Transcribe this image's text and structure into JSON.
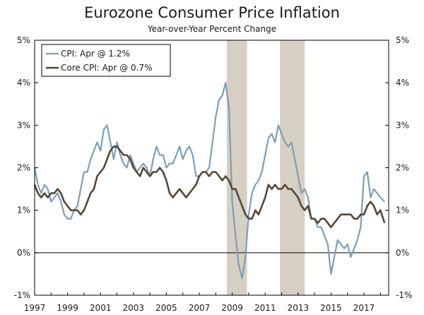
{
  "chart_data": {
    "type": "line",
    "title": "Eurozone Consumer Price Inflation",
    "subtitle": "Year-over-Year Percent Change",
    "xlabel": "",
    "ylabel": "",
    "xlim": [
      1997.0,
      2018.5
    ],
    "ylim": [
      -1,
      5
    ],
    "y_ticks": [
      -1,
      0,
      1,
      2,
      3,
      4,
      5
    ],
    "y_tick_labels": [
      "-1%",
      "0%",
      "1%",
      "2%",
      "3%",
      "4%",
      "5%"
    ],
    "x_ticks": [
      1997,
      1999,
      2001,
      2003,
      2005,
      2007,
      2009,
      2011,
      2013,
      2015,
      2017
    ],
    "x_tick_labels": [
      "1997",
      "1999",
      "2001",
      "2003",
      "2005",
      "2007",
      "2009",
      "2011",
      "2013",
      "2015",
      "2017"
    ],
    "recessions": [
      [
        2008.67,
        2009.9
      ],
      [
        2011.9,
        2013.4
      ]
    ],
    "zero_line": 0,
    "legend_position": "top-left",
    "series": [
      {
        "name": "CPI: Apr @ 1.2%",
        "color": "#7f9db5",
        "x": [
          1997.0,
          1997.2,
          1997.4,
          1997.6,
          1997.8,
          1998.0,
          1998.2,
          1998.4,
          1998.6,
          1998.8,
          1999.0,
          1999.2,
          1999.4,
          1999.6,
          1999.8,
          2000.0,
          2000.2,
          2000.4,
          2000.6,
          2000.8,
          2001.0,
          2001.2,
          2001.4,
          2001.6,
          2001.8,
          2002.0,
          2002.2,
          2002.4,
          2002.6,
          2002.8,
          2003.0,
          2003.2,
          2003.4,
          2003.6,
          2003.8,
          2004.0,
          2004.2,
          2004.4,
          2004.6,
          2004.8,
          2005.0,
          2005.2,
          2005.4,
          2005.6,
          2005.8,
          2006.0,
          2006.2,
          2006.4,
          2006.6,
          2006.8,
          2007.0,
          2007.2,
          2007.4,
          2007.6,
          2007.8,
          2008.0,
          2008.2,
          2008.4,
          2008.6,
          2008.8,
          2009.0,
          2009.2,
          2009.4,
          2009.6,
          2009.8,
          2010.0,
          2010.2,
          2010.4,
          2010.6,
          2010.8,
          2011.0,
          2011.2,
          2011.4,
          2011.6,
          2011.8,
          2012.0,
          2012.2,
          2012.4,
          2012.6,
          2012.8,
          2013.0,
          2013.2,
          2013.4,
          2013.6,
          2013.8,
          2014.0,
          2014.2,
          2014.4,
          2014.6,
          2014.8,
          2015.0,
          2015.2,
          2015.4,
          2015.6,
          2015.8,
          2016.0,
          2016.2,
          2016.4,
          2016.6,
          2016.8,
          2017.0,
          2017.2,
          2017.4,
          2017.6,
          2017.8,
          2018.0,
          2018.25
        ],
        "values": [
          2.0,
          1.6,
          1.4,
          1.6,
          1.5,
          1.2,
          1.3,
          1.4,
          1.2,
          0.9,
          0.8,
          0.8,
          1.0,
          1.1,
          1.5,
          1.9,
          1.9,
          2.2,
          2.4,
          2.6,
          2.4,
          2.9,
          3.0,
          2.6,
          2.2,
          2.6,
          2.3,
          2.1,
          2.0,
          2.3,
          2.1,
          1.9,
          2.0,
          2.1,
          2.0,
          1.8,
          2.2,
          2.5,
          2.3,
          2.3,
          2.0,
          2.1,
          2.1,
          2.3,
          2.5,
          2.2,
          2.4,
          2.5,
          2.3,
          1.8,
          1.8,
          1.9,
          1.9,
          2.0,
          2.6,
          3.2,
          3.6,
          3.7,
          4.0,
          3.4,
          1.2,
          0.4,
          -0.3,
          -0.6,
          -0.1,
          0.9,
          1.4,
          1.6,
          1.7,
          1.9,
          2.3,
          2.7,
          2.8,
          2.6,
          3.0,
          2.8,
          2.6,
          2.5,
          2.6,
          2.2,
          1.8,
          1.4,
          1.5,
          1.3,
          0.8,
          0.8,
          0.6,
          0.6,
          0.4,
          0.2,
          -0.5,
          -0.1,
          0.3,
          0.2,
          0.1,
          0.2,
          -0.1,
          0.1,
          0.3,
          0.6,
          1.8,
          1.9,
          1.3,
          1.5,
          1.4,
          1.3,
          1.2
        ]
      },
      {
        "name": "Core CPI: Apr @ 0.7%",
        "color": "#574738",
        "x": [
          1997.0,
          1997.2,
          1997.4,
          1997.6,
          1997.8,
          1998.0,
          1998.2,
          1998.4,
          1998.6,
          1998.8,
          1999.0,
          1999.2,
          1999.4,
          1999.6,
          1999.8,
          2000.0,
          2000.2,
          2000.4,
          2000.6,
          2000.8,
          2001.0,
          2001.2,
          2001.4,
          2001.6,
          2001.8,
          2002.0,
          2002.2,
          2002.4,
          2002.6,
          2002.8,
          2003.0,
          2003.2,
          2003.4,
          2003.6,
          2003.8,
          2004.0,
          2004.2,
          2004.4,
          2004.6,
          2004.8,
          2005.0,
          2005.2,
          2005.4,
          2005.6,
          2005.8,
          2006.0,
          2006.2,
          2006.4,
          2006.6,
          2006.8,
          2007.0,
          2007.2,
          2007.4,
          2007.6,
          2007.8,
          2008.0,
          2008.2,
          2008.4,
          2008.6,
          2008.8,
          2009.0,
          2009.2,
          2009.4,
          2009.6,
          2009.8,
          2010.0,
          2010.2,
          2010.4,
          2010.6,
          2010.8,
          2011.0,
          2011.2,
          2011.4,
          2011.6,
          2011.8,
          2012.0,
          2012.2,
          2012.4,
          2012.6,
          2012.8,
          2013.0,
          2013.2,
          2013.4,
          2013.6,
          2013.8,
          2014.0,
          2014.2,
          2014.4,
          2014.6,
          2014.8,
          2015.0,
          2015.2,
          2015.4,
          2015.6,
          2015.8,
          2016.0,
          2016.2,
          2016.4,
          2016.6,
          2016.8,
          2017.0,
          2017.2,
          2017.4,
          2017.6,
          2017.8,
          2018.0,
          2018.25
        ],
        "values": [
          1.6,
          1.4,
          1.3,
          1.4,
          1.3,
          1.4,
          1.4,
          1.5,
          1.4,
          1.2,
          1.1,
          1.0,
          1.0,
          1.0,
          0.9,
          1.0,
          1.2,
          1.4,
          1.5,
          1.8,
          1.9,
          2.0,
          2.2,
          2.4,
          2.5,
          2.5,
          2.4,
          2.3,
          2.3,
          2.2,
          2.0,
          1.9,
          1.8,
          2.0,
          1.9,
          1.8,
          1.9,
          1.9,
          2.0,
          1.9,
          1.7,
          1.4,
          1.3,
          1.4,
          1.5,
          1.4,
          1.3,
          1.4,
          1.5,
          1.6,
          1.8,
          1.9,
          1.9,
          1.8,
          1.9,
          1.9,
          1.8,
          1.7,
          1.8,
          1.7,
          1.5,
          1.5,
          1.3,
          1.1,
          0.9,
          0.8,
          0.8,
          1.0,
          0.9,
          1.1,
          1.3,
          1.6,
          1.5,
          1.6,
          1.5,
          1.5,
          1.6,
          1.5,
          1.5,
          1.4,
          1.3,
          1.1,
          1.0,
          1.1,
          0.8,
          0.8,
          0.7,
          0.8,
          0.8,
          0.7,
          0.6,
          0.7,
          0.8,
          0.9,
          0.9,
          0.9,
          0.9,
          0.8,
          0.8,
          0.9,
          0.9,
          1.1,
          1.2,
          1.1,
          0.9,
          1.0,
          0.7
        ]
      }
    ]
  }
}
